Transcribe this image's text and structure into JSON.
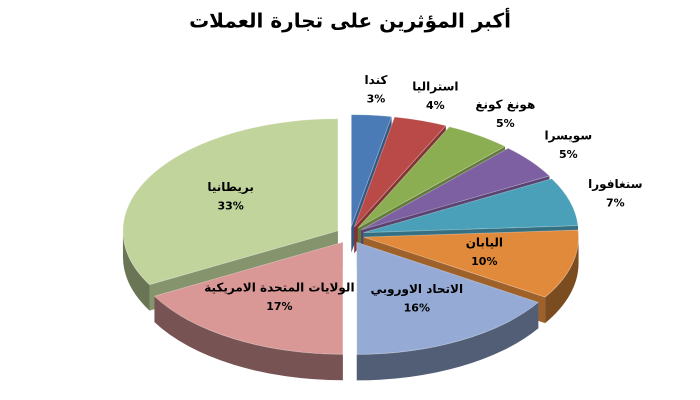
{
  "chart_data": {
    "type": "pie3d",
    "title": "أكبر المؤثرين على تجارة العملات",
    "categories": [
      "كندا",
      "استراليا",
      "هونغ كونغ",
      "سويسرا",
      "سنغافورا",
      "اليابان",
      "الاتحاد الاوروبي",
      "الولايات المتحدة الامريكية",
      "بريطانيا"
    ],
    "values": [
      3,
      4,
      5,
      5,
      7,
      10,
      16,
      17,
      33
    ],
    "value_labels": [
      "3%",
      "4%",
      "5%",
      "5%",
      "7%",
      "10%",
      "16%",
      "17%",
      "33%"
    ],
    "colors": [
      "#4a7bb7",
      "#b94a48",
      "#8cae52",
      "#7d60a1",
      "#4aa0b8",
      "#e28a3c",
      "#95abd6",
      "#d99796",
      "#c0d49c"
    ]
  }
}
